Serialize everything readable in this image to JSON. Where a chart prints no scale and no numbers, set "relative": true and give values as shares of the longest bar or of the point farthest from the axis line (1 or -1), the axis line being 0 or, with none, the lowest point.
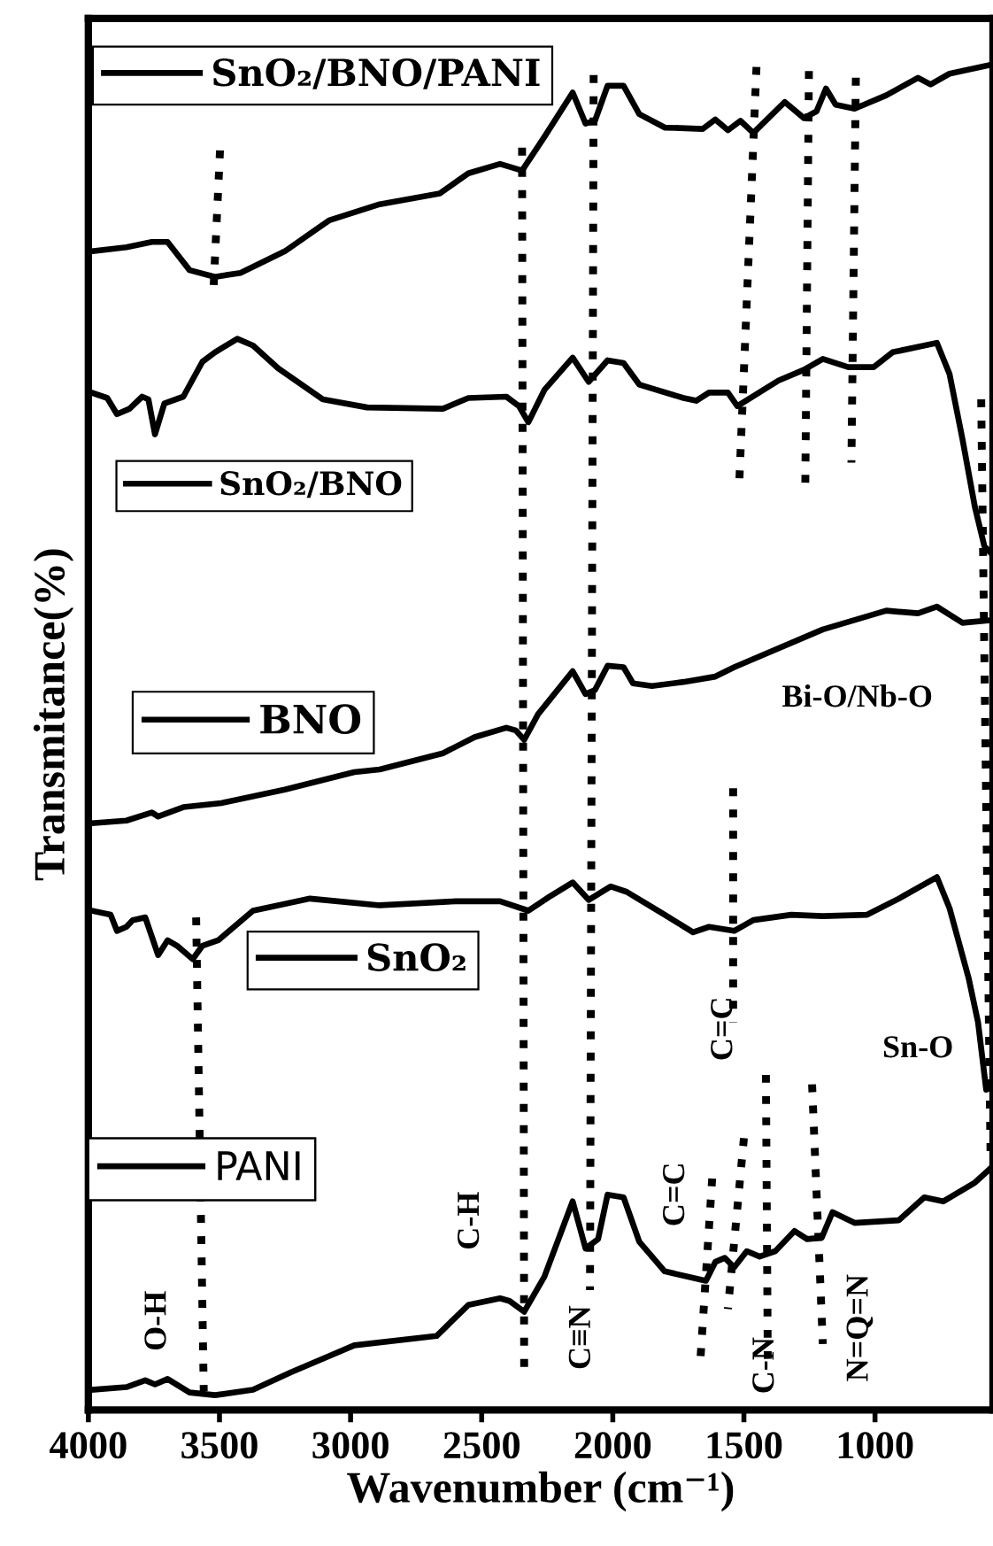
{
  "chart_data": {
    "type": "line",
    "relative": true,
    "xlabel": "Wavenumber (cm⁻¹)",
    "ylabel": "Transmitance(%)",
    "xlim": [
      4000,
      550
    ],
    "xticks": [
      4000,
      3500,
      3000,
      2500,
      2000,
      1500,
      1000
    ],
    "tick_labels": "x",
    "grid": false,
    "legend": "left",
    "marker": "none",
    "line_style": "solid",
    "series": [
      {
        "name": "SnO₂/BNO/PANI",
        "color": "#000000",
        "x": [
          3988,
          3855,
          3758,
          3698,
          3614,
          3517,
          3420,
          3251,
          3082,
          2889,
          2660,
          2551,
          2430,
          2346,
          2261,
          2153,
          2104,
          2068,
          2020,
          1959,
          1899,
          1802,
          1657,
          1609,
          1561,
          1513,
          1464,
          1344,
          1271,
          1223,
          1187,
          1150,
          1078,
          957,
          836,
          788,
          716,
          551
        ],
        "values": [
          0.861,
          0.864,
          0.868,
          0.868,
          0.847,
          0.842,
          0.845,
          0.861,
          0.884,
          0.896,
          0.904,
          0.919,
          0.926,
          0.921,
          0.946,
          0.979,
          0.956,
          0.958,
          0.984,
          0.984,
          0.963,
          0.953,
          0.952,
          0.959,
          0.951,
          0.958,
          0.949,
          0.972,
          0.96,
          0.965,
          0.982,
          0.97,
          0.967,
          0.977,
          0.99,
          0.985,
          0.993,
          1.0
        ]
      },
      {
        "name": "SnO₂/BNO",
        "color": "#000000",
        "x": [
          3988,
          3928,
          3891,
          3843,
          3795,
          3771,
          3746,
          3710,
          3638,
          3565,
          3517,
          3432,
          3372,
          3276,
          3106,
          2937,
          2648,
          2551,
          2406,
          2358,
          2322,
          2261,
          2153,
          2092,
          2020,
          1959,
          1899,
          1730,
          1682,
          1633,
          1561,
          1525,
          1368,
          1271,
          1199,
          1102,
          1005,
          933,
          812,
          764,
          716,
          667,
          619,
          583,
          559
        ],
        "values": [
          0.756,
          0.752,
          0.74,
          0.744,
          0.753,
          0.751,
          0.725,
          0.748,
          0.753,
          0.779,
          0.786,
          0.796,
          0.791,
          0.774,
          0.751,
          0.745,
          0.744,
          0.752,
          0.753,
          0.746,
          0.734,
          0.758,
          0.782,
          0.764,
          0.78,
          0.778,
          0.762,
          0.752,
          0.75,
          0.756,
          0.756,
          0.746,
          0.765,
          0.773,
          0.781,
          0.775,
          0.775,
          0.786,
          0.791,
          0.793,
          0.77,
          0.722,
          0.671,
          0.642,
          0.637
        ]
      },
      {
        "name": "BNO",
        "color": "#000000",
        "x": [
          3988,
          3855,
          3758,
          3734,
          3638,
          3493,
          3251,
          2986,
          2889,
          2648,
          2527,
          2406,
          2370,
          2338,
          2285,
          2153,
          2104,
          2068,
          2020,
          1959,
          1923,
          1851,
          1730,
          1609,
          1537,
          1199,
          957,
          836,
          764,
          667,
          551
        ],
        "values": [
          0.436,
          0.438,
          0.444,
          0.441,
          0.448,
          0.451,
          0.461,
          0.474,
          0.476,
          0.488,
          0.5,
          0.507,
          0.505,
          0.498,
          0.517,
          0.549,
          0.532,
          0.535,
          0.553,
          0.552,
          0.54,
          0.538,
          0.541,
          0.545,
          0.552,
          0.58,
          0.594,
          0.592,
          0.597,
          0.585,
          0.587
        ]
      },
      {
        "name": "SnO₂",
        "color": "#000000",
        "x": [
          3988,
          3915,
          3891,
          3855,
          3831,
          3783,
          3734,
          3698,
          3662,
          3602,
          3565,
          3505,
          3372,
          3155,
          2889,
          2599,
          2430,
          2322,
          2237,
          2153,
          2092,
          2008,
          1947,
          1802,
          1694,
          1633,
          1537,
          1464,
          1319,
          1199,
          1030,
          909,
          764,
          716,
          643,
          607,
          576,
          551
        ],
        "values": [
          0.371,
          0.368,
          0.356,
          0.359,
          0.364,
          0.366,
          0.338,
          0.349,
          0.345,
          0.335,
          0.345,
          0.349,
          0.371,
          0.38,
          0.375,
          0.378,
          0.378,
          0.371,
          0.382,
          0.392,
          0.379,
          0.389,
          0.385,
          0.368,
          0.355,
          0.359,
          0.356,
          0.364,
          0.368,
          0.367,
          0.368,
          0.38,
          0.396,
          0.373,
          0.321,
          0.288,
          0.238,
          0.24
        ]
      },
      {
        "name": "PANI",
        "color": "#000000",
        "x": [
          3988,
          3855,
          3783,
          3746,
          3698,
          3614,
          3517,
          3372,
          3227,
          2986,
          2672,
          2551,
          2430,
          2394,
          2338,
          2261,
          2153,
          2104,
          2056,
          2020,
          1959,
          1899,
          1802,
          1645,
          1609,
          1573,
          1537,
          1489,
          1440,
          1380,
          1307,
          1259,
          1203,
          1162,
          1078,
          909,
          812,
          740,
          619,
          551
        ],
        "values": [
          0.015,
          0.017,
          0.022,
          0.019,
          0.023,
          0.013,
          0.011,
          0.015,
          0.028,
          0.048,
          0.055,
          0.078,
          0.083,
          0.081,
          0.073,
          0.099,
          0.155,
          0.12,
          0.127,
          0.16,
          0.158,
          0.125,
          0.103,
          0.096,
          0.11,
          0.113,
          0.106,
          0.118,
          0.114,
          0.118,
          0.133,
          0.127,
          0.128,
          0.147,
          0.139,
          0.141,
          0.158,
          0.155,
          0.169,
          0.181
        ]
      },
      {
        "color": "#000000",
        "line_style": "dotted",
        "x": [
          3498,
          3522
        ],
        "values": [
          0.936,
          0.836
        ]
      },
      {
        "color": "#000000",
        "line_style": "dotted",
        "x": [
          2346,
          2338
        ],
        "values": [
          0.938,
          0.03
        ]
      },
      {
        "color": "#000000",
        "line_style": "dotted",
        "x": [
          2073,
          2087
        ],
        "values": [
          0.992,
          0.089
        ]
      },
      {
        "color": "#000000",
        "line_style": "dotted",
        "x": [
          1452,
          1517
        ],
        "values": [
          0.998,
          0.692
        ]
      },
      {
        "color": "#000000",
        "line_style": "dotted",
        "x": [
          1252,
          1266
        ],
        "values": [
          0.995,
          0.685
        ]
      },
      {
        "color": "#000000",
        "line_style": "dotted",
        "x": [
          1073,
          1090
        ],
        "values": [
          0.99,
          0.704
        ]
      },
      {
        "color": "#000000",
        "line_style": "dotted",
        "x": [
          595,
          559
        ],
        "values": [
          0.751,
          0.183
        ]
      },
      {
        "color": "#000000",
        "line_style": "dotted",
        "x": [
          3589,
          3560
        ],
        "values": [
          0.366,
          0.014
        ]
      },
      {
        "color": "#000000",
        "line_style": "dotted",
        "x": [
          1541,
          1541
        ],
        "values": [
          0.462,
          0.288
        ]
      },
      {
        "color": "#000000",
        "line_style": "dotted",
        "x": [
          1621,
          1665
        ],
        "values": [
          0.172,
          0.04
        ]
      },
      {
        "color": "#000000",
        "line_style": "dotted",
        "x": [
          1500,
          1561
        ],
        "values": [
          0.202,
          0.075
        ]
      },
      {
        "color": "#000000",
        "line_style": "dotted",
        "x": [
          1416,
          1409
        ],
        "values": [
          0.249,
          0.038
        ]
      },
      {
        "color": "#000000",
        "line_style": "dotted",
        "x": [
          1240,
          1199
        ],
        "values": [
          0.242,
          0.049
        ]
      }
    ],
    "annotations": [
      "O-H",
      "C-H",
      "C≡N",
      "C=C",
      "C=C",
      {
        "text": "C-N",
        "x": 1416,
        "y": 0.033
      },
      "N=Q=N",
      "Sn-O",
      "Bi-O/Nb-O"
    ]
  }
}
